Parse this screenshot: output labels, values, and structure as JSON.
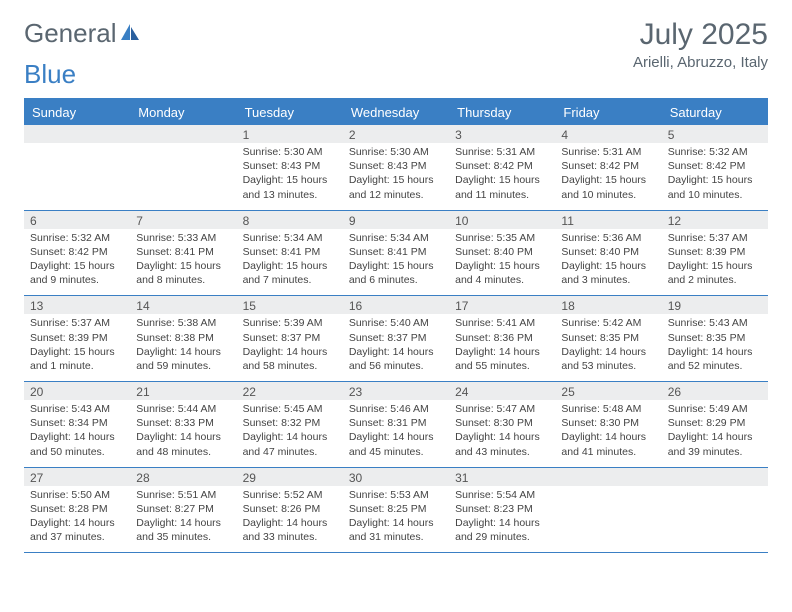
{
  "logo": {
    "part1": "General",
    "part2": "Blue"
  },
  "title": {
    "month": "July 2025",
    "location": "Arielli, Abruzzo, Italy"
  },
  "colors": {
    "header_bg": "#3a7fc4",
    "header_text": "#ffffff",
    "daynum_bg": "#ecedee",
    "text": "#444444",
    "title_text": "#5a6670"
  },
  "day_labels": [
    "Sunday",
    "Monday",
    "Tuesday",
    "Wednesday",
    "Thursday",
    "Friday",
    "Saturday"
  ],
  "weeks": [
    [
      null,
      null,
      {
        "n": "1",
        "sr": "Sunrise: 5:30 AM",
        "ss": "Sunset: 8:43 PM",
        "d1": "Daylight: 15 hours",
        "d2": "and 13 minutes."
      },
      {
        "n": "2",
        "sr": "Sunrise: 5:30 AM",
        "ss": "Sunset: 8:43 PM",
        "d1": "Daylight: 15 hours",
        "d2": "and 12 minutes."
      },
      {
        "n": "3",
        "sr": "Sunrise: 5:31 AM",
        "ss": "Sunset: 8:42 PM",
        "d1": "Daylight: 15 hours",
        "d2": "and 11 minutes."
      },
      {
        "n": "4",
        "sr": "Sunrise: 5:31 AM",
        "ss": "Sunset: 8:42 PM",
        "d1": "Daylight: 15 hours",
        "d2": "and 10 minutes."
      },
      {
        "n": "5",
        "sr": "Sunrise: 5:32 AM",
        "ss": "Sunset: 8:42 PM",
        "d1": "Daylight: 15 hours",
        "d2": "and 10 minutes."
      }
    ],
    [
      {
        "n": "6",
        "sr": "Sunrise: 5:32 AM",
        "ss": "Sunset: 8:42 PM",
        "d1": "Daylight: 15 hours",
        "d2": "and 9 minutes."
      },
      {
        "n": "7",
        "sr": "Sunrise: 5:33 AM",
        "ss": "Sunset: 8:41 PM",
        "d1": "Daylight: 15 hours",
        "d2": "and 8 minutes."
      },
      {
        "n": "8",
        "sr": "Sunrise: 5:34 AM",
        "ss": "Sunset: 8:41 PM",
        "d1": "Daylight: 15 hours",
        "d2": "and 7 minutes."
      },
      {
        "n": "9",
        "sr": "Sunrise: 5:34 AM",
        "ss": "Sunset: 8:41 PM",
        "d1": "Daylight: 15 hours",
        "d2": "and 6 minutes."
      },
      {
        "n": "10",
        "sr": "Sunrise: 5:35 AM",
        "ss": "Sunset: 8:40 PM",
        "d1": "Daylight: 15 hours",
        "d2": "and 4 minutes."
      },
      {
        "n": "11",
        "sr": "Sunrise: 5:36 AM",
        "ss": "Sunset: 8:40 PM",
        "d1": "Daylight: 15 hours",
        "d2": "and 3 minutes."
      },
      {
        "n": "12",
        "sr": "Sunrise: 5:37 AM",
        "ss": "Sunset: 8:39 PM",
        "d1": "Daylight: 15 hours",
        "d2": "and 2 minutes."
      }
    ],
    [
      {
        "n": "13",
        "sr": "Sunrise: 5:37 AM",
        "ss": "Sunset: 8:39 PM",
        "d1": "Daylight: 15 hours",
        "d2": "and 1 minute."
      },
      {
        "n": "14",
        "sr": "Sunrise: 5:38 AM",
        "ss": "Sunset: 8:38 PM",
        "d1": "Daylight: 14 hours",
        "d2": "and 59 minutes."
      },
      {
        "n": "15",
        "sr": "Sunrise: 5:39 AM",
        "ss": "Sunset: 8:37 PM",
        "d1": "Daylight: 14 hours",
        "d2": "and 58 minutes."
      },
      {
        "n": "16",
        "sr": "Sunrise: 5:40 AM",
        "ss": "Sunset: 8:37 PM",
        "d1": "Daylight: 14 hours",
        "d2": "and 56 minutes."
      },
      {
        "n": "17",
        "sr": "Sunrise: 5:41 AM",
        "ss": "Sunset: 8:36 PM",
        "d1": "Daylight: 14 hours",
        "d2": "and 55 minutes."
      },
      {
        "n": "18",
        "sr": "Sunrise: 5:42 AM",
        "ss": "Sunset: 8:35 PM",
        "d1": "Daylight: 14 hours",
        "d2": "and 53 minutes."
      },
      {
        "n": "19",
        "sr": "Sunrise: 5:43 AM",
        "ss": "Sunset: 8:35 PM",
        "d1": "Daylight: 14 hours",
        "d2": "and 52 minutes."
      }
    ],
    [
      {
        "n": "20",
        "sr": "Sunrise: 5:43 AM",
        "ss": "Sunset: 8:34 PM",
        "d1": "Daylight: 14 hours",
        "d2": "and 50 minutes."
      },
      {
        "n": "21",
        "sr": "Sunrise: 5:44 AM",
        "ss": "Sunset: 8:33 PM",
        "d1": "Daylight: 14 hours",
        "d2": "and 48 minutes."
      },
      {
        "n": "22",
        "sr": "Sunrise: 5:45 AM",
        "ss": "Sunset: 8:32 PM",
        "d1": "Daylight: 14 hours",
        "d2": "and 47 minutes."
      },
      {
        "n": "23",
        "sr": "Sunrise: 5:46 AM",
        "ss": "Sunset: 8:31 PM",
        "d1": "Daylight: 14 hours",
        "d2": "and 45 minutes."
      },
      {
        "n": "24",
        "sr": "Sunrise: 5:47 AM",
        "ss": "Sunset: 8:30 PM",
        "d1": "Daylight: 14 hours",
        "d2": "and 43 minutes."
      },
      {
        "n": "25",
        "sr": "Sunrise: 5:48 AM",
        "ss": "Sunset: 8:30 PM",
        "d1": "Daylight: 14 hours",
        "d2": "and 41 minutes."
      },
      {
        "n": "26",
        "sr": "Sunrise: 5:49 AM",
        "ss": "Sunset: 8:29 PM",
        "d1": "Daylight: 14 hours",
        "d2": "and 39 minutes."
      }
    ],
    [
      {
        "n": "27",
        "sr": "Sunrise: 5:50 AM",
        "ss": "Sunset: 8:28 PM",
        "d1": "Daylight: 14 hours",
        "d2": "and 37 minutes."
      },
      {
        "n": "28",
        "sr": "Sunrise: 5:51 AM",
        "ss": "Sunset: 8:27 PM",
        "d1": "Daylight: 14 hours",
        "d2": "and 35 minutes."
      },
      {
        "n": "29",
        "sr": "Sunrise: 5:52 AM",
        "ss": "Sunset: 8:26 PM",
        "d1": "Daylight: 14 hours",
        "d2": "and 33 minutes."
      },
      {
        "n": "30",
        "sr": "Sunrise: 5:53 AM",
        "ss": "Sunset: 8:25 PM",
        "d1": "Daylight: 14 hours",
        "d2": "and 31 minutes."
      },
      {
        "n": "31",
        "sr": "Sunrise: 5:54 AM",
        "ss": "Sunset: 8:23 PM",
        "d1": "Daylight: 14 hours",
        "d2": "and 29 minutes."
      },
      null,
      null
    ]
  ]
}
